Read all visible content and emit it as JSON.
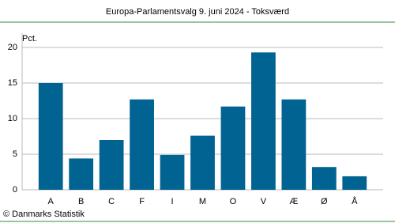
{
  "chart_data": {
    "type": "bar",
    "title": "Europa-Parlamentsvalg 9. juni 2024 - Toksværd",
    "y_label": "Pct.",
    "source": "© Danmarks Statistik",
    "categories": [
      "A",
      "B",
      "C",
      "F",
      "I",
      "M",
      "O",
      "V",
      "Æ",
      "Ø",
      "Å"
    ],
    "values": [
      15.0,
      4.4,
      7.0,
      12.7,
      4.9,
      7.6,
      11.7,
      19.3,
      12.7,
      3.2,
      1.9
    ],
    "color": "#006391",
    "ylim": [
      0,
      22
    ],
    "yticks": [
      0,
      5,
      10,
      15,
      20
    ],
    "grid": true
  }
}
